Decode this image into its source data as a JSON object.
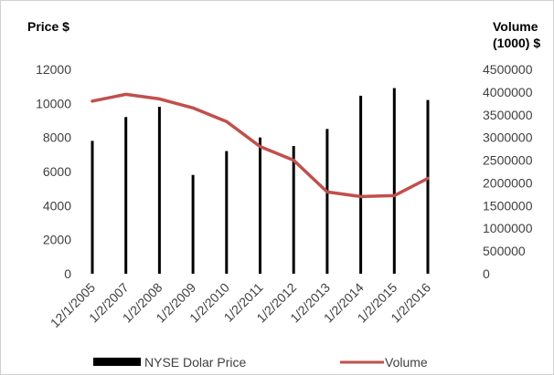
{
  "chart_data": {
    "type": "bar+line",
    "categories": [
      "12/1/2005",
      "1/2/2007",
      "1/2/2008",
      "1/2/2009",
      "1/2/2010",
      "1/2/2011",
      "1/2/2012",
      "1/2/2013",
      "1/2/2014",
      "1/2/2015",
      "1/2/2016"
    ],
    "series": [
      {
        "name": "NYSE Dolar Price",
        "type": "bar",
        "axis": "left",
        "color": "#000000",
        "values": [
          7800,
          9200,
          9800,
          5800,
          7200,
          8000,
          7500,
          8500,
          10450,
          10900,
          10200
        ]
      },
      {
        "name": "Volume",
        "type": "line",
        "axis": "right",
        "color": "#c0504d",
        "values": [
          3800000,
          3950000,
          3850000,
          3650000,
          3350000,
          2800000,
          2500000,
          1800000,
          1700000,
          1720000,
          2100000
        ]
      }
    ],
    "y_left": {
      "title": "Price $",
      "ylim": [
        0,
        12000
      ],
      "ticks": [
        0,
        2000,
        4000,
        6000,
        8000,
        10000,
        12000
      ]
    },
    "y_right": {
      "title_lines": [
        "Volume",
        "(1000) $"
      ],
      "ylim": [
        0,
        4500000
      ],
      "ticks": [
        0,
        500000,
        1000000,
        1500000,
        2000000,
        2500000,
        3000000,
        3500000,
        4000000,
        4500000
      ]
    },
    "grid": false,
    "legend_position": "bottom"
  }
}
